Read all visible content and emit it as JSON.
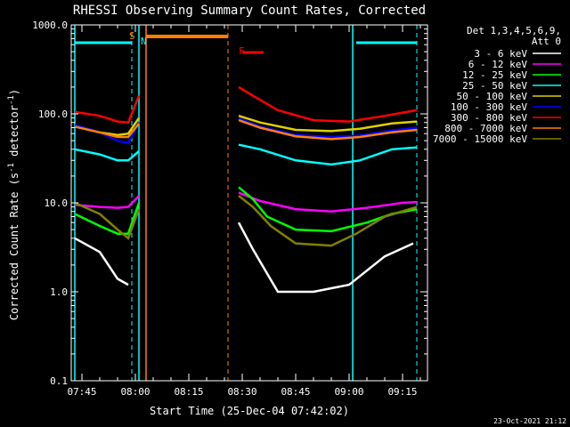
{
  "chart_data": {
    "type": "line",
    "title": "RHESSI Observing Summary Count Rates, Corrected",
    "xlabel": "Start Time (25-Dec-04 07:42:02)",
    "ylabel": "Corrected Count Rate (s-1 detector-1)",
    "ylabel_parts": {
      "main": "Corrected Count Rate (s",
      "sup1": "-1",
      "mid": " detector",
      "sup2": "-1",
      "end": ")"
    },
    "yscale": "log",
    "ylim": [
      0.1,
      1000
    ],
    "xlim": [
      "07:42",
      "09:22"
    ],
    "x_ticks": [
      "07:45",
      "08:00",
      "08:15",
      "08:30",
      "08:45",
      "09:00",
      "09:15"
    ],
    "y_ticks": [
      "0.1",
      "1.0",
      "10.0",
      "100.0",
      "1000.0"
    ],
    "legend_header": [
      "Det 1,3,4,5,6,9,",
      "Att 0"
    ],
    "legend_position": "right",
    "footer_date": "23-Oct-2021 21:12",
    "markers": [
      {
        "label": "S",
        "time": "08:00"
      },
      {
        "label": "N",
        "time": "08:00"
      },
      {
        "label": "F",
        "time": "08:28"
      }
    ],
    "orbit_bars": [
      {
        "start": "07:43",
        "end": "07:59"
      },
      {
        "start": "09:02",
        "end": "09:19"
      }
    ],
    "saa_bar": {
      "start": "08:03",
      "end": "08:26"
    },
    "flare_bar": {
      "start": "08:30",
      "end": "08:36"
    },
    "night_lines": [
      "07:43",
      "08:01",
      "09:01"
    ],
    "day_lines": [
      "07:59",
      "08:26",
      "09:19"
    ],
    "series": [
      {
        "name": "3 - 6 keV",
        "color": "#ffffff",
        "seg1": [
          [
            "07:43",
            4.0
          ],
          [
            "07:50",
            2.8
          ],
          [
            "07:55",
            1.4
          ],
          [
            "07:58",
            1.2
          ]
        ],
        "seg2": [
          [
            "08:29",
            6.0
          ],
          [
            "08:33",
            3.0
          ],
          [
            "08:37",
            1.6
          ],
          [
            "08:40",
            1.0
          ],
          [
            "08:50",
            1.0
          ],
          [
            "09:00",
            1.2
          ],
          [
            "09:10",
            2.5
          ],
          [
            "09:18",
            3.5
          ]
        ]
      },
      {
        "name": "6 - 12 keV",
        "color": "#ff00ff",
        "seg1": [
          [
            "07:43",
            9.5
          ],
          [
            "07:50",
            9.0
          ],
          [
            "07:55",
            8.8
          ],
          [
            "07:58",
            9.0
          ],
          [
            "08:01",
            12
          ]
        ],
        "seg2": [
          [
            "08:29",
            13
          ],
          [
            "08:35",
            10.5
          ],
          [
            "08:45",
            8.5
          ],
          [
            "08:55",
            8.0
          ],
          [
            "09:05",
            8.8
          ],
          [
            "09:15",
            10.0
          ],
          [
            "09:19",
            10.2
          ]
        ]
      },
      {
        "name": "12 - 25 keV",
        "color": "#00ff00",
        "seg1": [
          [
            "07:43",
            7.5
          ],
          [
            "07:50",
            5.5
          ],
          [
            "07:55",
            4.5
          ],
          [
            "07:58",
            4.5
          ],
          [
            "08:01",
            10
          ]
        ],
        "seg2": [
          [
            "08:29",
            15
          ],
          [
            "08:33",
            11
          ],
          [
            "08:37",
            7.0
          ],
          [
            "08:45",
            5.0
          ],
          [
            "08:55",
            4.8
          ],
          [
            "09:05",
            6.0
          ],
          [
            "09:12",
            7.5
          ],
          [
            "09:19",
            8.5
          ]
        ]
      },
      {
        "name": "25 - 50 keV",
        "color": "#00ffff",
        "seg1": [
          [
            "07:43",
            40
          ],
          [
            "07:50",
            35
          ],
          [
            "07:55",
            30
          ],
          [
            "07:58",
            30
          ],
          [
            "08:01",
            38
          ]
        ],
        "seg2": [
          [
            "08:29",
            45
          ],
          [
            "08:35",
            40
          ],
          [
            "08:45",
            30
          ],
          [
            "08:55",
            27
          ],
          [
            "09:03",
            30
          ],
          [
            "09:12",
            40
          ],
          [
            "09:19",
            42
          ]
        ]
      },
      {
        "name": "50 - 100 keV",
        "color": "#e0d000",
        "seg1": [
          [
            "07:43",
            72
          ],
          [
            "07:50",
            62
          ],
          [
            "07:55",
            58
          ],
          [
            "07:58",
            60
          ],
          [
            "08:01",
            90
          ]
        ],
        "seg2": [
          [
            "08:29",
            95
          ],
          [
            "08:35",
            80
          ],
          [
            "08:45",
            66
          ],
          [
            "08:55",
            64
          ],
          [
            "09:03",
            68
          ],
          [
            "09:12",
            78
          ],
          [
            "09:19",
            82
          ]
        ]
      },
      {
        "name": "100 - 300 keV",
        "color": "#0000ff",
        "seg1": [
          [
            "07:43",
            75
          ],
          [
            "07:50",
            62
          ],
          [
            "07:55",
            50
          ],
          [
            "07:58",
            47
          ],
          [
            "08:01",
            80
          ]
        ],
        "seg2": [
          [
            "08:29",
            90
          ],
          [
            "08:35",
            72
          ],
          [
            "08:45",
            58
          ],
          [
            "08:55",
            55
          ],
          [
            "09:03",
            57
          ],
          [
            "09:12",
            65
          ],
          [
            "09:19",
            70
          ]
        ]
      },
      {
        "name": "300 - 800 keV",
        "color": "#ff0000",
        "seg1": [
          [
            "07:43",
            105
          ],
          [
            "07:50",
            95
          ],
          [
            "07:55",
            82
          ],
          [
            "07:58",
            80
          ],
          [
            "08:01",
            160
          ]
        ],
        "seg2": [
          [
            "08:29",
            200
          ],
          [
            "08:33",
            160
          ],
          [
            "08:40",
            110
          ],
          [
            "08:50",
            85
          ],
          [
            "09:00",
            82
          ],
          [
            "09:10",
            95
          ],
          [
            "09:19",
            110
          ]
        ]
      },
      {
        "name": "800 - 7000 keV",
        "color": "#ff8000",
        "seg1": [
          [
            "07:43",
            72
          ],
          [
            "07:50",
            62
          ],
          [
            "07:55",
            55
          ],
          [
            "07:58",
            55
          ],
          [
            "08:01",
            78
          ]
        ],
        "seg2": [
          [
            "08:29",
            85
          ],
          [
            "08:35",
            70
          ],
          [
            "08:45",
            56
          ],
          [
            "08:55",
            52
          ],
          [
            "09:03",
            55
          ],
          [
            "09:12",
            62
          ],
          [
            "09:19",
            66
          ]
        ]
      },
      {
        "name": "7000 - 15000 keV",
        "color": "#808000",
        "seg1": [
          [
            "07:43",
            10
          ],
          [
            "07:50",
            7.5
          ],
          [
            "07:55",
            5.0
          ],
          [
            "07:58",
            4.0
          ],
          [
            "08:01",
            8.5
          ]
        ],
        "seg2": [
          [
            "08:29",
            12
          ],
          [
            "08:33",
            9
          ],
          [
            "08:38",
            5.5
          ],
          [
            "08:45",
            3.5
          ],
          [
            "08:55",
            3.3
          ],
          [
            "09:02",
            4.5
          ],
          [
            "09:10",
            7.0
          ],
          [
            "09:19",
            9.0
          ]
        ]
      }
    ]
  }
}
